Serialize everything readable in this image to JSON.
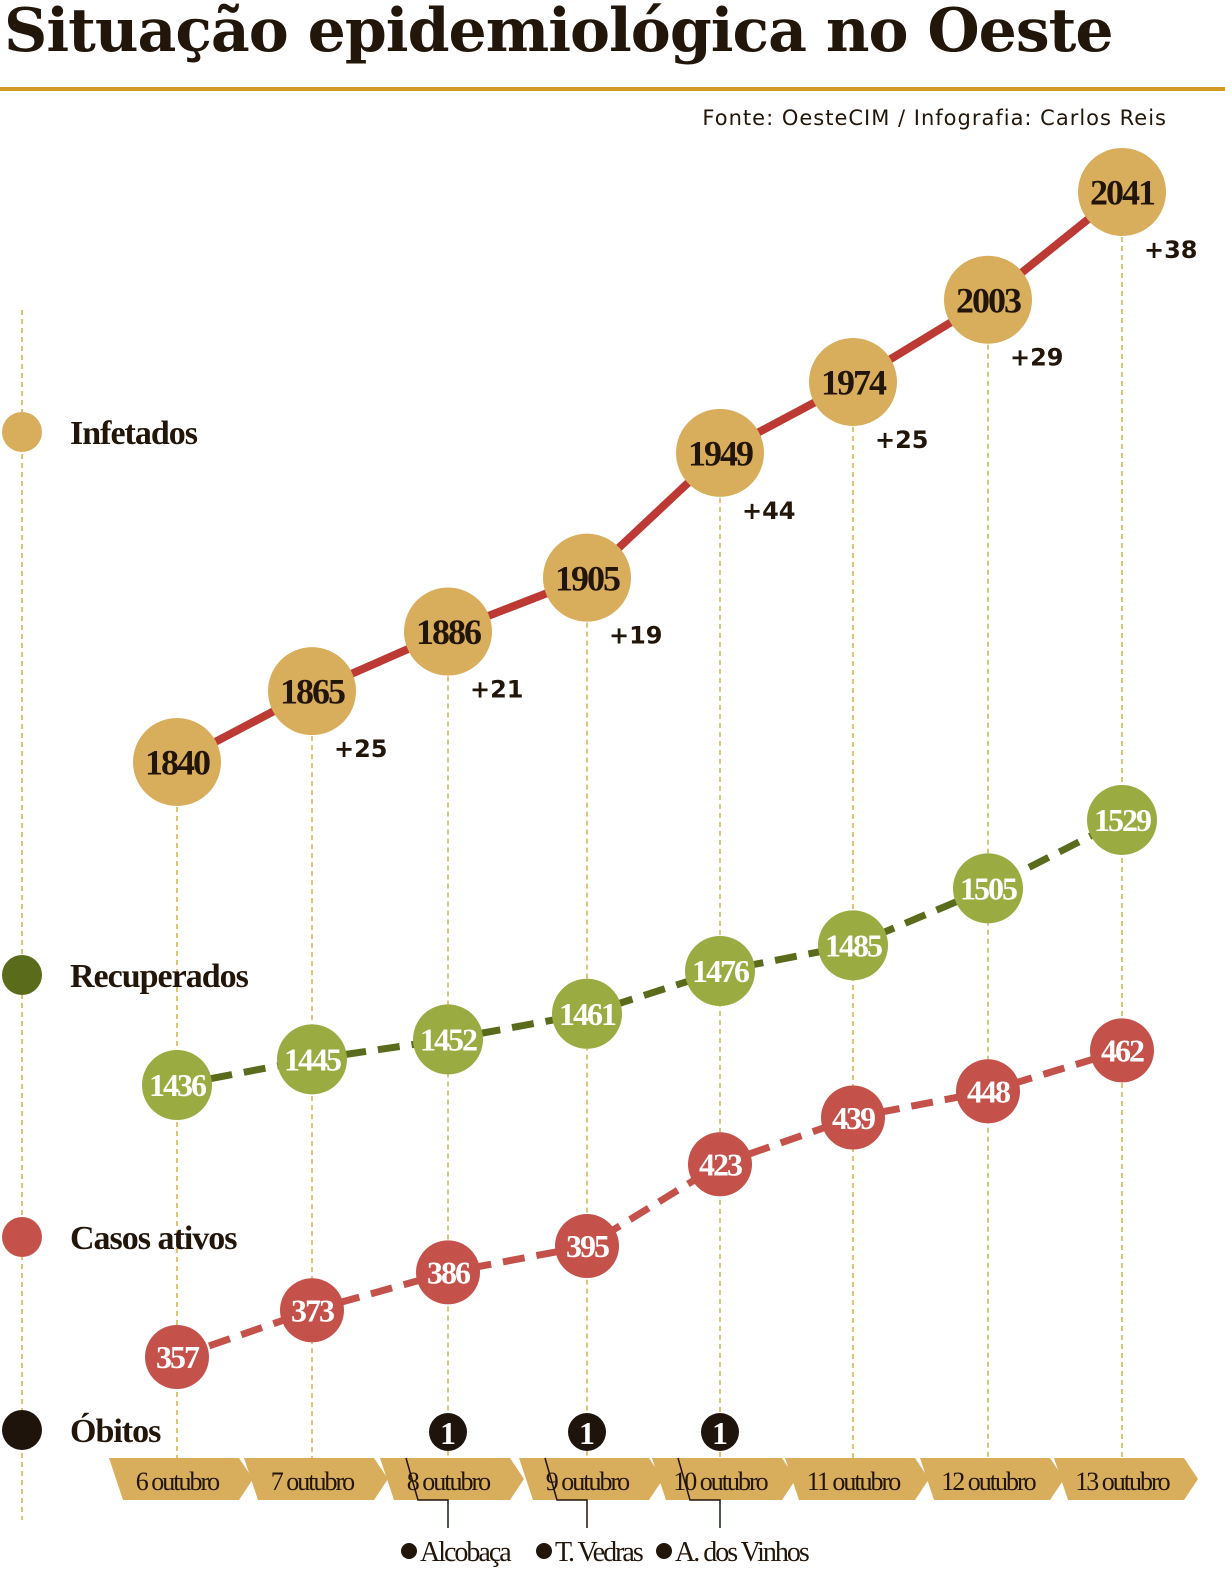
{
  "chart_data": {
    "type": "line",
    "title": "Situação epidemiológica no Oeste",
    "source": "Fonte: OesteCIM / Infografia: Carlos Reis",
    "categories": [
      "6 outubro",
      "7 outubro",
      "8 outubro",
      "9 outubro",
      "10 outubro",
      "11 outubro",
      "12 outubro",
      "13 outubro"
    ],
    "series": [
      {
        "name": "Infetados",
        "values": [
          1840,
          1865,
          1886,
          1905,
          1949,
          1974,
          2003,
          2041
        ],
        "deltas": [
          "",
          "+25",
          "+21",
          "+19",
          "+44",
          "+25",
          "+29",
          "+38"
        ],
        "color": "#d8ad5c",
        "line": "#bd3a34"
      },
      {
        "name": "Recuperados",
        "values": [
          1436,
          1445,
          1452,
          1461,
          1476,
          1485,
          1505,
          1529
        ],
        "color": "#9aab42",
        "line": "#5b6b1c",
        "legend": "#5b6b1c"
      },
      {
        "name": "Casos ativos",
        "values": [
          357,
          373,
          386,
          395,
          423,
          439,
          448,
          462
        ],
        "color": "#c5514b",
        "line": "#c5514b"
      },
      {
        "name": "Óbitos",
        "values": [
          0,
          0,
          1,
          1,
          1,
          0,
          0,
          0
        ],
        "color": "#1e140c",
        "locations": [
          "",
          "",
          "Alcobaça",
          "T. Vedras",
          "A. dos Vinhos",
          "",
          "",
          ""
        ]
      }
    ]
  }
}
